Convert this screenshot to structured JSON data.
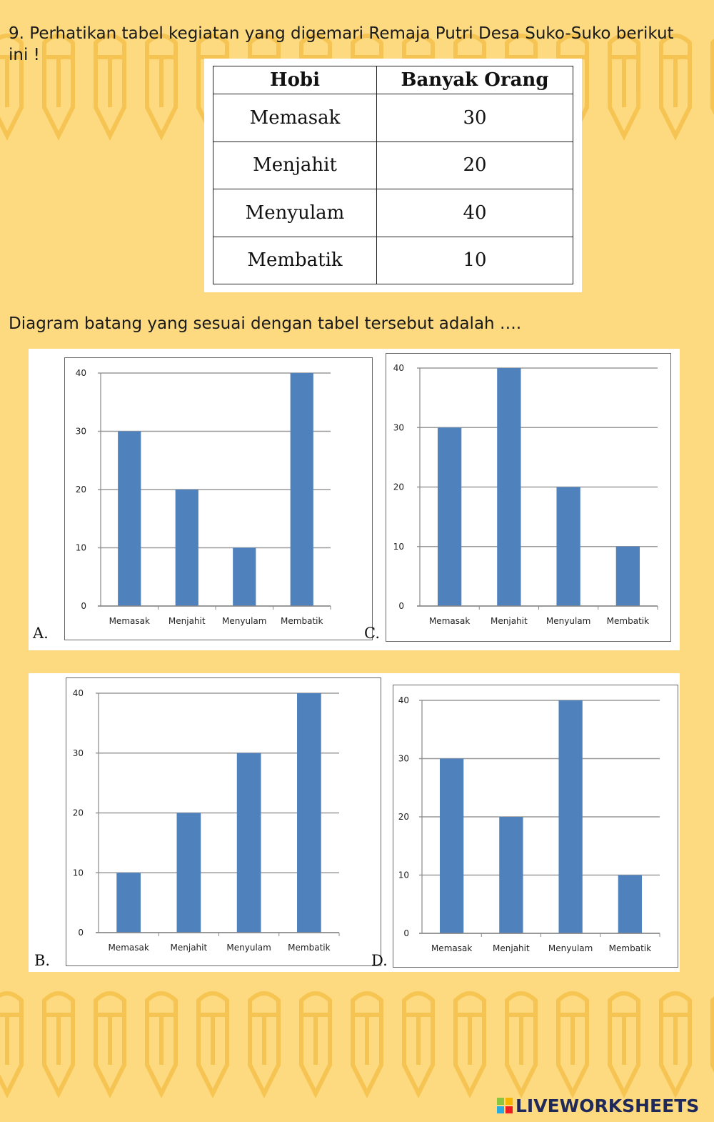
{
  "question": {
    "number": "9.",
    "text": "Perhatikan tabel kegiatan yang digemari Remaja Putri Desa Suko-Suko berikut ini !"
  },
  "table": {
    "headers": [
      "Hobi",
      "Banyak Orang"
    ],
    "rows": [
      {
        "hobi": "Memasak",
        "count": "30"
      },
      {
        "hobi": "Menjahit",
        "count": "20"
      },
      {
        "hobi": "Menyulam",
        "count": "40"
      },
      {
        "hobi": "Membatik",
        "count": "10"
      }
    ]
  },
  "prompt": "Diagram batang yang sesuai dengan tabel tersebut adalah ….",
  "colors": {
    "background": "#fdd97f",
    "pattern": "#f5c24e",
    "bar": "#4f81bd",
    "grid": "#9a9a9a",
    "logo_text": "#1f2a5a"
  },
  "chart_data": [
    {
      "option": "A.",
      "type": "bar",
      "categories": [
        "Memasak",
        "Menjahit",
        "Menyulam",
        "Membatik"
      ],
      "values": [
        30,
        20,
        10,
        40
      ],
      "yticks": [
        "0",
        "10",
        "20",
        "30",
        "40"
      ],
      "ylim": [
        0,
        40
      ],
      "grid": true
    },
    {
      "option": "C.",
      "type": "bar",
      "categories": [
        "Memasak",
        "Menjahit",
        "Menyulam",
        "Membatik"
      ],
      "values": [
        30,
        40,
        20,
        10
      ],
      "yticks": [
        "0",
        "10",
        "20",
        "30",
        "40"
      ],
      "ylim": [
        0,
        40
      ],
      "grid": true
    },
    {
      "option": "B.",
      "type": "bar",
      "categories": [
        "Memasak",
        "Menjahit",
        "Menyulam",
        "Membatik"
      ],
      "values": [
        10,
        20,
        30,
        40
      ],
      "yticks": [
        "0",
        "10",
        "20",
        "30",
        "40"
      ],
      "ylim": [
        0,
        40
      ],
      "grid": true
    },
    {
      "option": "D.",
      "type": "bar",
      "categories": [
        "Memasak",
        "Menjahit",
        "Menyulam",
        "Membatik"
      ],
      "values": [
        30,
        20,
        40,
        10
      ],
      "yticks": [
        "0",
        "10",
        "20",
        "30",
        "40"
      ],
      "ylim": [
        0,
        40
      ],
      "grid": true
    }
  ],
  "footer": {
    "logo_text": "LIVEWORKSHEETS",
    "logo_icon": "liveworksheets-logo-icon"
  }
}
